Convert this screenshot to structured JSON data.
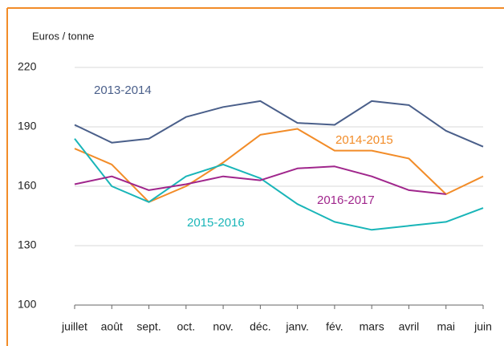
{
  "chart_data": {
    "type": "line",
    "y_axis_label": "Euros / tonne",
    "categories": [
      "juillet",
      "août",
      "sept.",
      "oct.",
      "nov.",
      "déc.",
      "janv.",
      "fév.",
      "mars",
      "avril",
      "mai",
      "juin"
    ],
    "series": [
      {
        "name": "2013-2014",
        "color": "#4a5f8a",
        "values": [
          191,
          182,
          184,
          195,
          200,
          203,
          192,
          191,
          203,
          201,
          188,
          180
        ]
      },
      {
        "name": "2014-2015",
        "color": "#f28c28",
        "values": [
          179,
          171,
          152,
          160,
          172,
          186,
          189,
          178,
          178,
          174,
          156,
          165
        ]
      },
      {
        "name": "2015-2016",
        "color": "#19b5b8",
        "values": [
          184,
          160,
          152,
          165,
          171,
          164,
          151,
          142,
          138,
          140,
          142,
          149
        ]
      },
      {
        "name": "2016-2017",
        "color": "#a0268c",
        "values": [
          161,
          165,
          158,
          161,
          165,
          163,
          169,
          170,
          165,
          158,
          156,
          null
        ]
      }
    ],
    "ylim": [
      100,
      220
    ],
    "yticks": [
      100,
      130,
      160,
      190,
      220
    ],
    "grid": true
  }
}
